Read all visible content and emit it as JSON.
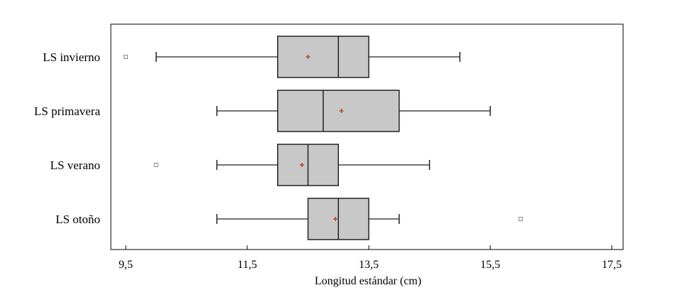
{
  "chart_data": {
    "type": "boxplot",
    "orientation": "horizontal",
    "xlabel": "Longitud estándar (cm)",
    "xlim": [
      9.3,
      17.8
    ],
    "xticks": [
      9.5,
      11.5,
      13.5,
      15.5,
      17.5
    ],
    "xtick_labels": [
      "9,5",
      "11,5",
      "13,5",
      "15,5",
      "17,5"
    ],
    "grid": false,
    "series": [
      {
        "name": "LS invierno",
        "whisker_low": 10.0,
        "q1": 12.0,
        "median": 13.0,
        "q3": 13.5,
        "whisker_high": 15.0,
        "mean": 12.5,
        "outliers": [
          9.5
        ]
      },
      {
        "name": "LS primavera",
        "whisker_low": 11.0,
        "q1": 12.0,
        "median": 12.75,
        "q3": 14.0,
        "whisker_high": 15.5,
        "mean": 13.05,
        "outliers": []
      },
      {
        "name": "LS verano",
        "whisker_low": 11.0,
        "q1": 12.0,
        "median": 12.5,
        "q3": 13.0,
        "whisker_high": 14.5,
        "mean": 12.4,
        "outliers": [
          10.0
        ]
      },
      {
        "name": "LS otoño",
        "whisker_low": 11.0,
        "q1": 12.5,
        "median": 13.0,
        "q3": 13.5,
        "whisker_high": 14.0,
        "mean": 12.95,
        "outliers": [
          16.0
        ]
      }
    ],
    "colors": {
      "box_fill": "#c8c8c8",
      "box_stroke": "#222222",
      "mean_marker": "#b5451b",
      "outlier_stroke": "#888888"
    }
  }
}
